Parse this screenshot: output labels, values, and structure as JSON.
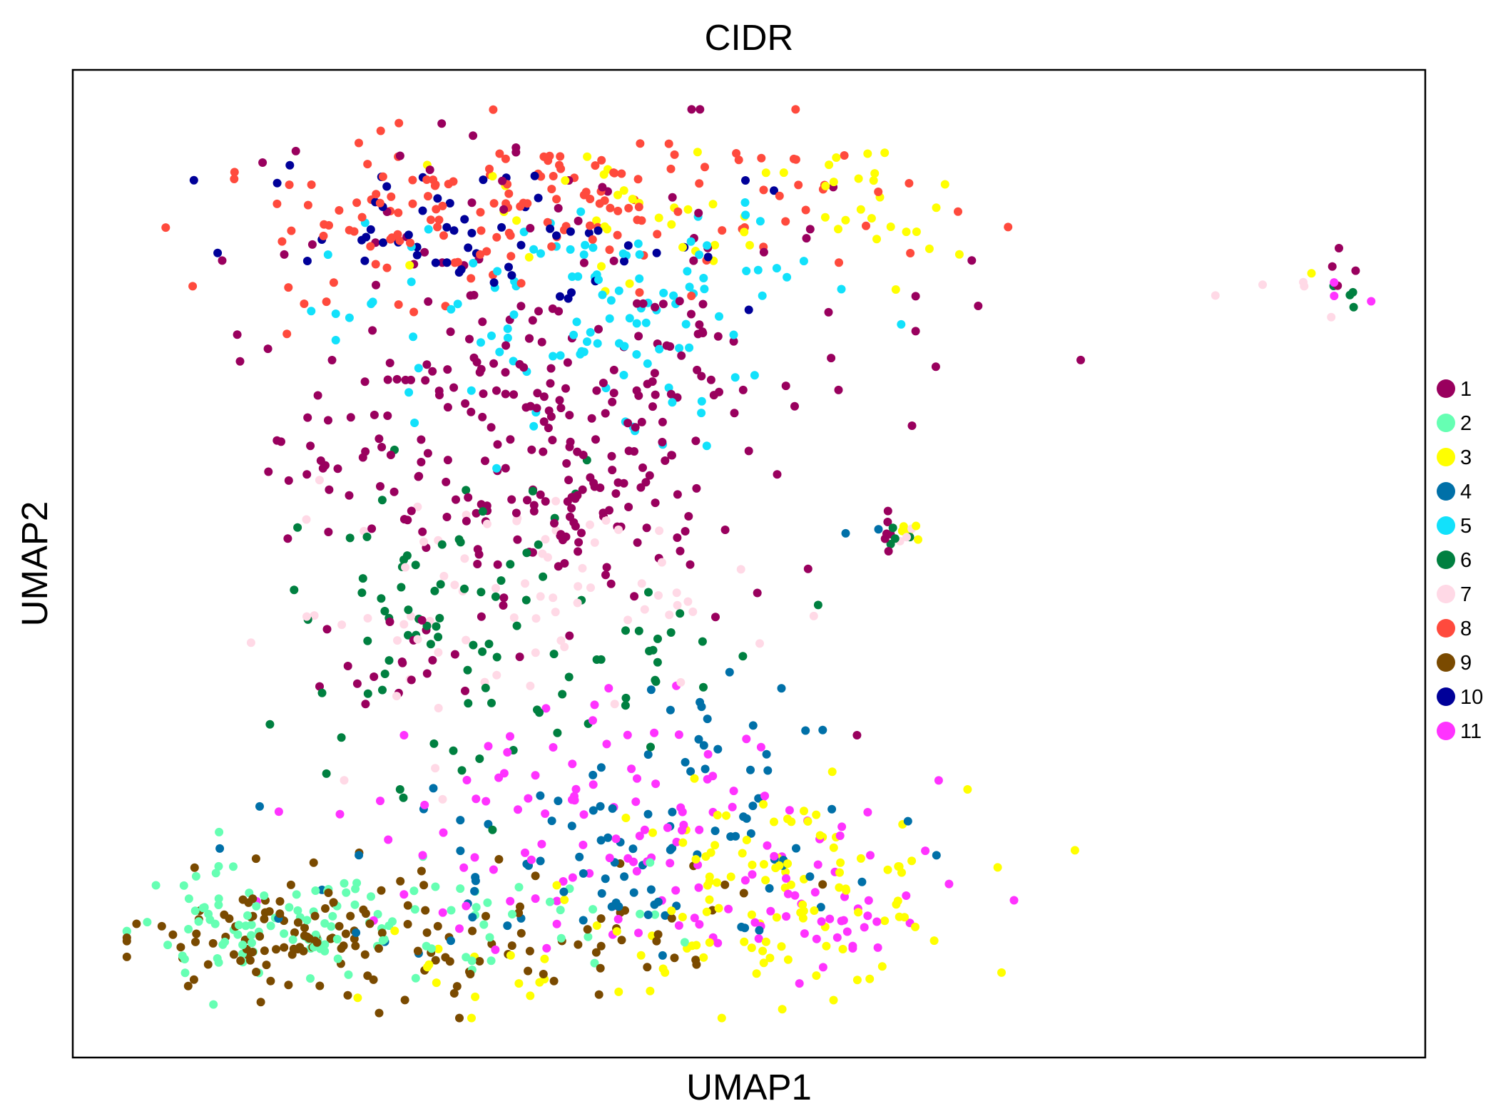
{
  "chart_data": {
    "type": "scatter",
    "title": "CIDR",
    "xlabel": "UMAP1",
    "ylabel": "UMAP2",
    "xlim": [
      0,
      100
    ],
    "ylim": [
      0,
      100
    ],
    "xticks": [],
    "yticks": [],
    "grid": false,
    "legend_position": "right",
    "series": [
      {
        "name": "1",
        "color": "#99005e",
        "clusters": [
          [
            33,
            63,
            9,
            7,
            155
          ],
          [
            37,
            55,
            5,
            4,
            45
          ],
          [
            19,
            60,
            2,
            2,
            8
          ],
          [
            44,
            72,
            11,
            5,
            45
          ],
          [
            35,
            83,
            12,
            6,
            50
          ],
          [
            60,
            53,
            1,
            1,
            6
          ],
          [
            93,
            80,
            1,
            1,
            4
          ],
          [
            40,
            48,
            8,
            6,
            20
          ],
          [
            23,
            40,
            3,
            4,
            15
          ]
        ]
      },
      {
        "name": "2",
        "color": "#66ffb3",
        "clusters": [
          [
            13,
            13,
            5,
            3,
            70
          ],
          [
            24,
            13,
            6,
            3,
            35
          ],
          [
            36,
            14,
            6,
            3,
            20
          ]
        ]
      },
      {
        "name": "3",
        "color": "#ffff00",
        "clusters": [
          [
            52,
            17,
            7,
            5,
            110
          ],
          [
            58,
            85,
            4,
            4,
            25
          ],
          [
            42,
            85,
            10,
            5,
            35
          ],
          [
            62,
            53,
            1,
            1,
            5
          ],
          [
            93,
            81,
            1,
            1,
            1
          ],
          [
            31,
            10,
            8,
            3,
            18
          ]
        ]
      },
      {
        "name": "4",
        "color": "#0070a8",
        "clusters": [
          [
            40,
            20,
            10,
            5,
            85
          ],
          [
            46,
            32,
            4,
            3,
            20
          ],
          [
            58,
            53,
            1,
            1,
            2
          ]
        ]
      },
      {
        "name": "5",
        "color": "#12e1fb",
        "clusters": [
          [
            35,
            73,
            8,
            6,
            75
          ],
          [
            43,
            78,
            8,
            4,
            45
          ]
        ]
      },
      {
        "name": "6",
        "color": "#008040",
        "clusters": [
          [
            28,
            44,
            6,
            8,
            80
          ],
          [
            42,
            41,
            5,
            4,
            20
          ],
          [
            94,
            78,
            2,
            1,
            4
          ],
          [
            61,
            53,
            1,
            1,
            4
          ]
        ]
      },
      {
        "name": "7",
        "color": "#ffd9e6",
        "clusters": [
          [
            31,
            45,
            8,
            6,
            55
          ],
          [
            44,
            48,
            6,
            4,
            20
          ],
          [
            92,
            77,
            2,
            1,
            5
          ],
          [
            62,
            53,
            1,
            1,
            3
          ]
        ]
      },
      {
        "name": "8",
        "color": "#ff4a3d",
        "clusters": [
          [
            26,
            85,
            8,
            4,
            90
          ],
          [
            42,
            87,
            10,
            4,
            75
          ]
        ]
      },
      {
        "name": "9",
        "color": "#7a4a00",
        "clusters": [
          [
            16,
            12,
            6,
            3,
            95
          ],
          [
            28,
            10,
            8,
            3,
            40
          ],
          [
            40,
            15,
            7,
            3,
            25
          ]
        ]
      },
      {
        "name": "10",
        "color": "#000099",
        "clusters": [
          [
            24,
            85,
            5,
            3,
            25
          ],
          [
            35,
            83,
            8,
            4,
            35
          ]
        ]
      },
      {
        "name": "11",
        "color": "#ff33ff",
        "clusters": [
          [
            34,
            25,
            8,
            6,
            70
          ],
          [
            46,
            18,
            9,
            5,
            60
          ],
          [
            56,
            14,
            4,
            3,
            25
          ],
          [
            94,
            77,
            1,
            1,
            3
          ]
        ]
      }
    ]
  }
}
